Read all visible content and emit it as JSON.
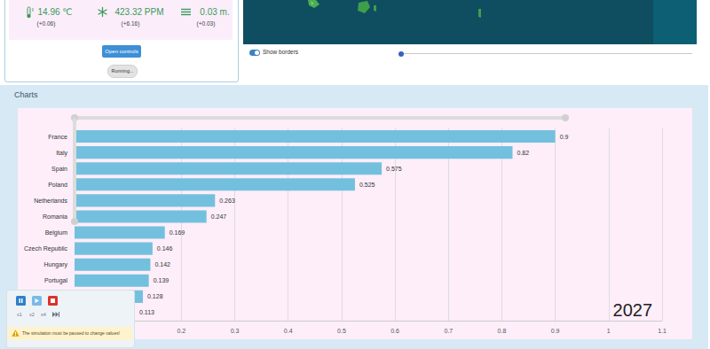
{
  "stats": [
    {
      "value": "14.96 ℃",
      "delta": "(+0.06)"
    },
    {
      "value": "423.32 PPM",
      "delta": "(+6.16)"
    },
    {
      "value": "0.03 m.",
      "delta": "(+0.03)"
    }
  ],
  "buttons": {
    "open_controls": "Open controls",
    "status": "Running..."
  },
  "map_controls": {
    "toggle": "Show borders"
  },
  "section_title": "Charts",
  "chart_data": {
    "type": "bar",
    "orientation": "horizontal",
    "categories": [
      "France",
      "Italy",
      "Spain",
      "Poland",
      "Netherlands",
      "Romania",
      "Belgium",
      "Czech Republic",
      "Hungary",
      "Portugal",
      null,
      null
    ],
    "values": [
      0.9,
      0.82,
      0.575,
      0.525,
      0.263,
      0.247,
      0.169,
      0.146,
      0.142,
      0.139,
      0.128,
      0.113
    ],
    "color": "#73c0de",
    "xlim": [
      0,
      1.1
    ],
    "xticks": [
      0.2,
      0.3,
      0.4,
      0.5,
      0.6,
      0.7,
      0.8,
      0.9,
      1.0,
      1.1
    ],
    "grid": true,
    "data_labels": true,
    "annotations": [
      "2027"
    ]
  },
  "player": {
    "speeds": [
      "x1",
      "x2",
      "x4"
    ],
    "warning": "The simulation must be paused to change values!"
  }
}
